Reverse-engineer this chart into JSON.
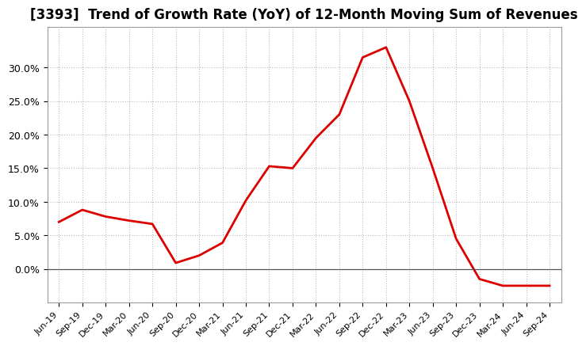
{
  "title": "[3393]  Trend of Growth Rate (YoY) of 12-Month Moving Sum of Revenues",
  "title_fontsize": 12,
  "line_color": "#dd0000",
  "background_color": "#ffffff",
  "plot_bg_color": "#ffffff",
  "grid_color": "#bbbbbb",
  "x_labels": [
    "Jun-19",
    "Sep-19",
    "Dec-19",
    "Mar-20",
    "Jun-20",
    "Sep-20",
    "Dec-20",
    "Mar-21",
    "Jun-21",
    "Sep-21",
    "Dec-21",
    "Mar-22",
    "Jun-22",
    "Sep-22",
    "Dec-22",
    "Mar-23",
    "Jun-23",
    "Sep-23",
    "Dec-23",
    "Mar-24",
    "Jun-24",
    "Sep-24"
  ],
  "y_values": [
    7.0,
    8.8,
    7.8,
    7.2,
    6.7,
    0.9,
    2.0,
    3.9,
    10.2,
    15.3,
    15.0,
    19.5,
    23.0,
    31.5,
    33.0,
    25.0,
    15.0,
    4.5,
    -1.5,
    -2.5,
    -2.5,
    -2.5
  ],
  "ylim": [
    -5,
    36
  ],
  "yticks": [
    0.0,
    5.0,
    10.0,
    15.0,
    20.0,
    25.0,
    30.0
  ],
  "line_width": 2.0
}
